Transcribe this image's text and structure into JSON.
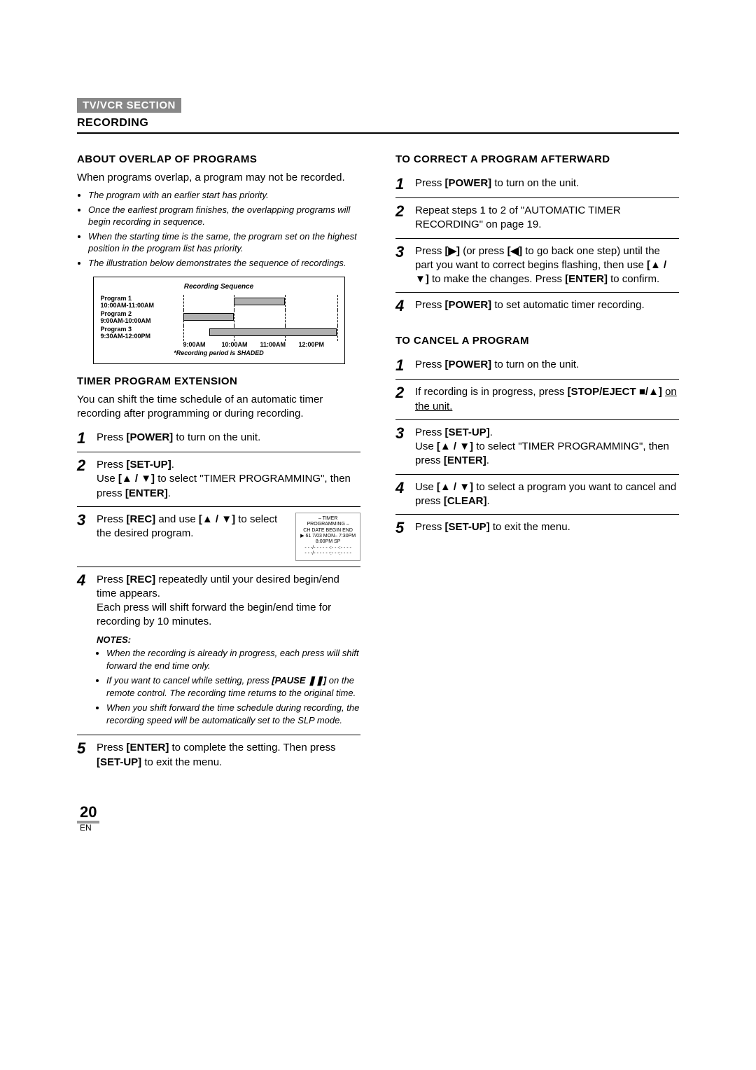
{
  "header": {
    "section_badge": "TV/VCR SECTION",
    "recording": "RECORDING"
  },
  "left": {
    "overlap": {
      "title": "ABOUT OVERLAP OF PROGRAMS",
      "intro": "When programs overlap, a program may not be recorded.",
      "bullets": [
        "The program with an earlier start has priority.",
        "Once the earliest program finishes, the overlapping programs will begin recording in sequence.",
        "When the starting time is the same, the program set on the highest position in the program list has priority.",
        "The illustration below demonstrates the sequence of recordings."
      ]
    },
    "chart": {
      "title": "Recording Sequence",
      "rows": [
        {
          "label_l1": "Program 1",
          "label_l2": "10:00AM-11:00AM",
          "start_pct": 33,
          "end_pct": 66
        },
        {
          "label_l1": "Program 2",
          "label_l2": "9:00AM-10:00AM",
          "start_pct": 0,
          "end_pct": 33
        },
        {
          "label_l1": "Program 3",
          "label_l2": "9:30AM-12:00PM",
          "start_pct": 17,
          "end_pct": 100
        }
      ],
      "ticks": [
        "9:00AM",
        "10:00AM",
        "11:00AM",
        "12:00PM"
      ],
      "dashed_positions_pct": [
        0,
        33,
        66,
        100
      ],
      "footnote": "*Recording period is SHADED"
    },
    "timer_ext": {
      "title": "TIMER PROGRAM EXTENSION",
      "intro": "You can shift the time schedule of an automatic timer recording after programming or during recording.",
      "steps": [
        {
          "n": "1",
          "html": "Press <b>[POWER]</b> to turn on the unit."
        },
        {
          "n": "2",
          "html": "Press <b>[SET-UP]</b>.<br>Use <b>[▲ / ▼]</b> to select \"TIMER PROGRAMMING\", then press <b>[ENTER]</b>."
        },
        {
          "n": "3",
          "html": "Press <b>[REC]</b> and use <b>[▲ / ▼]</b> to select the desired program.",
          "lcd_title": "– TIMER PROGRAMMING –",
          "lcd_cols": "CH   DATE        BEGIN  END",
          "lcd_row": "▶ 61  7/03  MON– 7:30PM  8:00PM SP",
          "lcd_dash": "- -   -/- -   - - -    -:- -    -:- -   - -"
        },
        {
          "n": "4",
          "html": "Press <b>[REC]</b> repeatedly until your desired begin/end time appears.<br>Each press will shift forward the begin/end time for recording by 10 minutes.",
          "notes_h": "NOTES:",
          "notes": [
            "When the recording is already in progress, each press will shift forward the end time only.",
            "If you want to cancel while setting, press <b>[PAUSE ❚❚]</b> on the remote control. The recording time returns to the original time.",
            "When you shift forward the time schedule during recording, the recording speed will be automatically set to the SLP mode."
          ]
        },
        {
          "n": "5",
          "html": "Press <b>[ENTER]</b> to complete the setting. Then press <b>[SET-UP]</b> to exit the menu."
        }
      ]
    }
  },
  "right": {
    "correct": {
      "title": "TO CORRECT A PROGRAM AFTERWARD",
      "steps": [
        {
          "n": "1",
          "html": "Press <b>[POWER]</b> to turn on the unit."
        },
        {
          "n": "2",
          "html": "Repeat steps 1 to 2 of \"AUTOMATIC TIMER RECORDING\" on page 19."
        },
        {
          "n": "3",
          "html": "Press <b>[▶]</b> (or press <b>[◀]</b> to go back one step) until the part you want to correct begins flashing, then use <b>[▲ / ▼]</b> to make the changes. Press <b>[ENTER]</b> to confirm."
        },
        {
          "n": "4",
          "html": "Press <b>[POWER]</b> to set automatic timer recording."
        }
      ]
    },
    "cancel": {
      "title": "TO CANCEL A PROGRAM",
      "steps": [
        {
          "n": "1",
          "html": "Press <b>[POWER]</b> to turn on the unit."
        },
        {
          "n": "2",
          "html": "If recording is in progress, press <b>[STOP/EJECT ■/▲]</b> <span class='underline'>on the unit.</span>"
        },
        {
          "n": "3",
          "html": "Press <b>[SET-UP]</b>.<br>Use <b>[▲ / ▼]</b> to select \"TIMER PROGRAMMING\", then press <b>[ENTER]</b>."
        },
        {
          "n": "4",
          "html": "Use <b>[▲ / ▼]</b> to select a program you want to cancel and press <b>[CLEAR]</b>."
        },
        {
          "n": "5",
          "html": "Press <b>[SET-UP]</b> to exit the menu."
        }
      ]
    }
  },
  "footer": {
    "page": "20",
    "lang": "EN"
  }
}
